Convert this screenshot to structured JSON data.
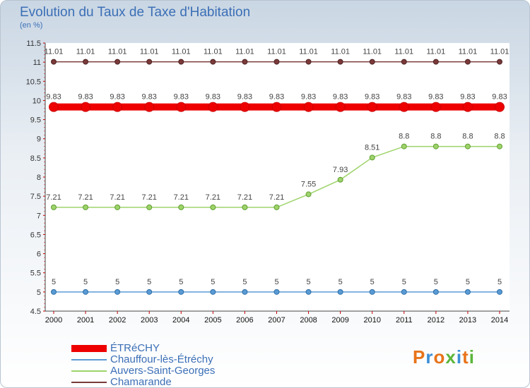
{
  "chart_data": {
    "type": "line",
    "title": "Evolution du Taux de Taxe d'Habitation",
    "unit": "(en %)",
    "x": [
      "2000",
      "2001",
      "2002",
      "2003",
      "2004",
      "2005",
      "2006",
      "2007",
      "2008",
      "2009",
      "2010",
      "2011",
      "2012",
      "2013",
      "2014"
    ],
    "ylim": [
      4.5,
      11.5
    ],
    "yticks": [
      4.5,
      5,
      5.5,
      6,
      6.5,
      7,
      7.5,
      8,
      8.5,
      9,
      9.5,
      10,
      10.5,
      11,
      11.5
    ],
    "grid": false,
    "legend_position": "bottom-left",
    "series": [
      {
        "name": "ÉTRéCHY",
        "color": "#ee0000",
        "values": [
          9.83,
          9.83,
          9.83,
          9.83,
          9.83,
          9.83,
          9.83,
          9.83,
          9.83,
          9.83,
          9.83,
          9.83,
          9.83,
          9.83,
          9.83
        ],
        "labels": [
          "9.83",
          "9.83",
          "9.83",
          "9.83",
          "9.83",
          "9.83",
          "9.83",
          "9.83",
          "9.83",
          "9.83",
          "9.83",
          "9.83",
          "9.83",
          "9.83",
          "9.83"
        ]
      },
      {
        "name": "Chauffour-lès-Étréchy",
        "color": "#5a9bd5",
        "values": [
          5,
          5,
          5,
          5,
          5,
          5,
          5,
          5,
          5,
          5,
          5,
          5,
          5,
          5,
          5
        ],
        "labels": [
          "5",
          "5",
          "5",
          "5",
          "5",
          "5",
          "5",
          "5",
          "5",
          "5",
          "5",
          "5",
          "5",
          "5",
          "5"
        ]
      },
      {
        "name": "Auvers-Saint-Georges",
        "color": "#9ed36a",
        "values": [
          7.21,
          7.21,
          7.21,
          7.21,
          7.21,
          7.21,
          7.21,
          7.21,
          7.55,
          7.93,
          8.51,
          8.8,
          8.8,
          8.8,
          8.8
        ],
        "labels": [
          "7.21",
          "7.21",
          "7.21",
          "7.21",
          "7.21",
          "7.21",
          "7.21",
          "7.21",
          "7.55",
          "7.93",
          "8.51",
          "8.8",
          "8.8",
          "8.8",
          "8.8"
        ]
      },
      {
        "name": "Chamarande",
        "color": "#7b3a3a",
        "values": [
          11.01,
          11.01,
          11.01,
          11.01,
          11.01,
          11.01,
          11.01,
          11.01,
          11.01,
          11.01,
          11.01,
          11.01,
          11.01,
          11.01,
          11.01
        ],
        "labels": [
          "11.01",
          "11.01",
          "11.01",
          "11.01",
          "11.01",
          "11.01",
          "11.01",
          "11.01",
          "11.01",
          "11.01",
          "11.01",
          "11.01",
          "11.01",
          "11.01",
          "11.01"
        ]
      }
    ]
  },
  "logo": {
    "text": "Proxiti",
    "letter_colors": [
      "#e8731a",
      "#3b8fd6",
      "#e8731a",
      "#5bb53a",
      "#3b8fd6",
      "#e8731a",
      "#5bb53a"
    ]
  }
}
